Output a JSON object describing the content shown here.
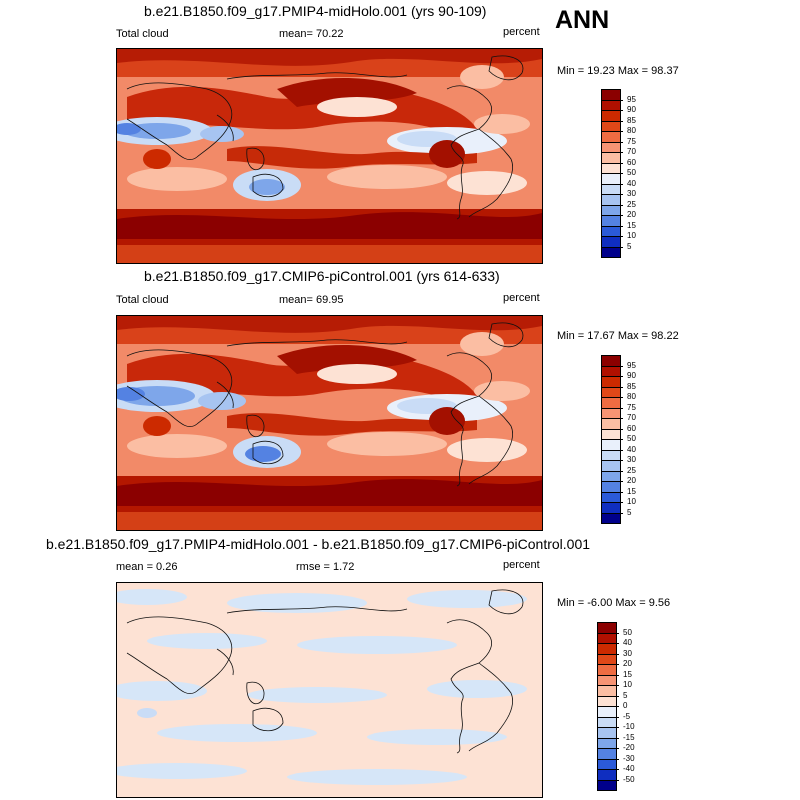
{
  "season": "ANN",
  "panels": [
    {
      "title": "b.e21.B1850.f09_g17.PMIP4-midHolo.001 (yrs 90-109)",
      "left_label": "Total cloud",
      "mid_label": "mean=  70.22",
      "units": "percent",
      "minmax": "Min =  19.23 Max =  98.37"
    },
    {
      "title": "b.e21.B1850.f09_g17.CMIP6-piControl.001 (yrs 614-633)",
      "left_label": "Total cloud",
      "mid_label": "mean=  69.95",
      "units": "percent",
      "minmax": "Min =  17.67 Max =  98.22"
    },
    {
      "title": "b.e21.B1850.f09_g17.PMIP4-midHolo.001 - b.e21.B1850.f09_g17.CMIP6-piControl.001",
      "left_label": "mean =   0.26",
      "mid_label": "rmse =   1.72",
      "units": "percent",
      "minmax": "Min =  -6.00 Max =   9.56"
    }
  ],
  "colorbars": {
    "abs": {
      "labels": [
        "95",
        "90",
        "85",
        "80",
        "75",
        "70",
        "60",
        "50",
        "40",
        "30",
        "25",
        "20",
        "15",
        "10",
        "5"
      ],
      "colors": [
        "#8b0000",
        "#b01000",
        "#cc2a00",
        "#e04818",
        "#ef6c42",
        "#f79474",
        "#fbbea3",
        "#fde2d4",
        "#e9f0fb",
        "#c9dcf6",
        "#a7c4f1",
        "#7ea6ea",
        "#5482e2",
        "#2b5ad8",
        "#0f2ec0",
        "#00008b"
      ]
    },
    "diff": {
      "labels": [
        "50",
        "40",
        "30",
        "20",
        "15",
        "10",
        "5",
        "0",
        "-5",
        "-10",
        "-15",
        "-20",
        "-30",
        "-40",
        "-50"
      ],
      "colors": [
        "#8b0000",
        "#b01000",
        "#cc2a00",
        "#e04818",
        "#ef6c42",
        "#f79474",
        "#fbbea3",
        "#fde2d4",
        "#e9f0fb",
        "#c9dcf6",
        "#a7c4f1",
        "#7ea6ea",
        "#5482e2",
        "#2b5ad8",
        "#0f2ec0",
        "#00008b"
      ]
    }
  }
}
